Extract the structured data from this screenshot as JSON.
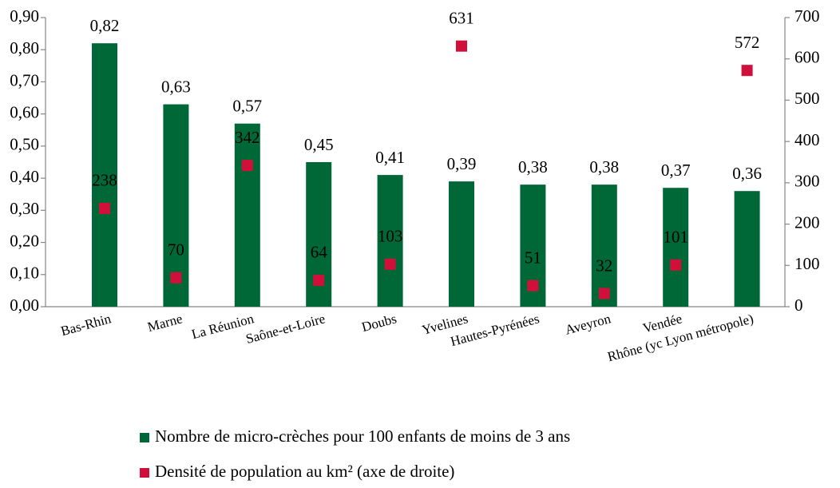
{
  "chart_data": {
    "type": "bar",
    "categories": [
      "Bas-Rhin",
      "Marne",
      "La Réunion",
      "Saône-et-Loire",
      "Doubs",
      "Yvelines",
      "Hautes-Pyrénées",
      "Aveyron",
      "Vendée",
      "Rhône (yc Lyon métropole)"
    ],
    "series": [
      {
        "name": "Nombre de micro-crèches pour 100 enfants de moins de 3 ans",
        "type": "bar",
        "color": "#006837",
        "values": [
          0.82,
          0.63,
          0.57,
          0.45,
          0.41,
          0.39,
          0.38,
          0.38,
          0.37,
          0.36
        ],
        "value_labels": [
          "0,82",
          "0,63",
          "0,57",
          "0,45",
          "0,41",
          "0,39",
          "0,38",
          "0,38",
          "0,37",
          "0,36"
        ]
      },
      {
        "name": "Densité de population au km² (axe de droite)",
        "type": "scatter",
        "axis": "y2",
        "color": "#d0103a",
        "values": [
          238,
          70,
          342,
          64,
          103,
          631,
          51,
          32,
          101,
          572
        ]
      }
    ],
    "ylim": [
      0,
      0.9
    ],
    "yticks": [
      {
        "value": 0,
        "label": "0,00"
      },
      {
        "value": 0.1,
        "label": "0,10"
      },
      {
        "value": 0.2,
        "label": "0,20"
      },
      {
        "value": 0.3,
        "label": "0,30"
      },
      {
        "value": 0.4,
        "label": "0,40"
      },
      {
        "value": 0.5,
        "label": "0,50"
      },
      {
        "value": 0.6,
        "label": "0,60"
      },
      {
        "value": 0.7,
        "label": "0,70"
      },
      {
        "value": 0.8,
        "label": "0,80"
      },
      {
        "value": 0.9,
        "label": "0,90"
      }
    ],
    "y2lim": [
      0,
      700
    ],
    "y2ticks": [
      0,
      100,
      200,
      300,
      400,
      500,
      600,
      700
    ],
    "grid": false,
    "legend": "bottom"
  }
}
